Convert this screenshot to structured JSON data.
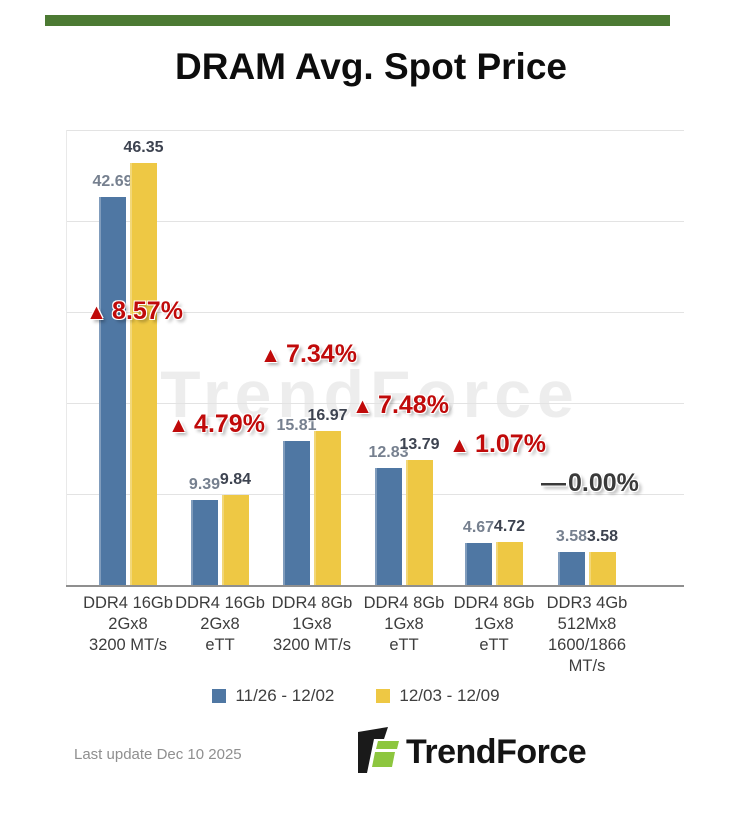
{
  "title": "DRAM Avg. Spot Price",
  "watermark": "TrendForce",
  "colors": {
    "top_bar": "#4c7a33",
    "series_blue": "#4f77a3",
    "series_yellow": "#eec844",
    "up_red": "#c00a0a",
    "flat_dark": "#3a3a3a",
    "logo_green": "#8dc63f",
    "logo_black": "#1a1a1a"
  },
  "chart_data": {
    "type": "bar",
    "title": "DRAM Avg. Spot Price",
    "categories": [
      [
        "DDR4 16Gb",
        "2Gx8",
        "3200 MT/s"
      ],
      [
        "DDR4 16Gb",
        "2Gx8",
        "eTT"
      ],
      [
        "DDR4 8Gb",
        "1Gx8",
        "3200 MT/s"
      ],
      [
        "DDR4 8Gb",
        "1Gx8",
        "eTT"
      ],
      [
        "DDR4 8Gb",
        "1Gx8",
        "eTT"
      ],
      [
        "DDR3 4Gb",
        "512Mx8",
        "1600/1866",
        "MT/s"
      ]
    ],
    "series": [
      {
        "name": "11/26 - 12/02",
        "color": "#4f77a3",
        "values": [
          42.69,
          9.39,
          15.81,
          12.83,
          4.67,
          3.58
        ]
      },
      {
        "name": "12/03 - 12/09",
        "color": "#eec844",
        "values": [
          46.35,
          9.84,
          16.97,
          13.79,
          4.72,
          3.58
        ]
      }
    ],
    "change_labels": [
      {
        "symbol": "▲",
        "text": "8.57%",
        "direction": "up"
      },
      {
        "symbol": "▲",
        "text": "4.79%",
        "direction": "up"
      },
      {
        "symbol": "▲",
        "text": "7.34%",
        "direction": "up"
      },
      {
        "symbol": "▲",
        "text": "7.48%",
        "direction": "up"
      },
      {
        "symbol": "▲",
        "text": "1.07%",
        "direction": "up"
      },
      {
        "symbol": "—",
        "text": "0.00%",
        "direction": "flat"
      }
    ],
    "ylim": [
      0,
      50
    ],
    "grid": true,
    "legend_position": "bottom",
    "value_labels_shown": true
  },
  "legend": {
    "items": [
      {
        "label": "11/26 - 12/02",
        "color": "#4f77a3"
      },
      {
        "label": "12/03 - 12/09",
        "color": "#eec844"
      }
    ]
  },
  "footer": {
    "last_update": "Last update Dec 10 2025",
    "brand": "TrendForce"
  }
}
